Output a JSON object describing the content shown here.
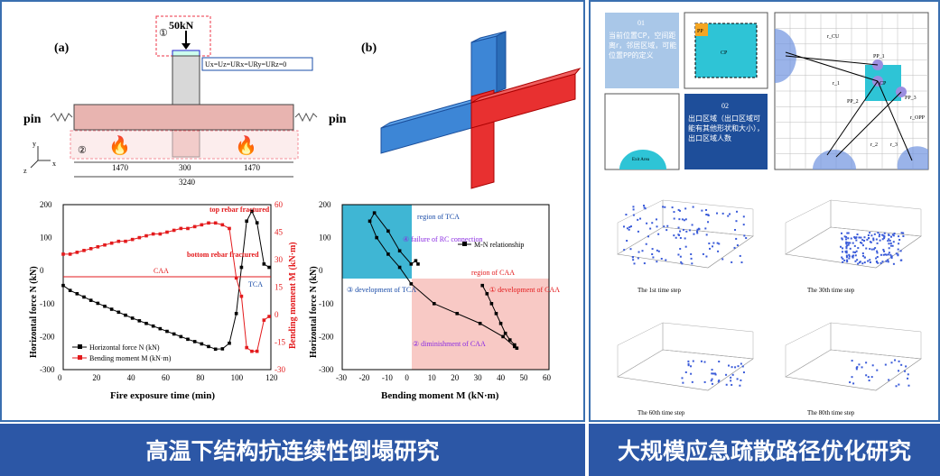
{
  "banners": {
    "left": "高温下结构抗连续性倒塌研究",
    "right": "大规模应急疏散路径优化研究"
  },
  "fig_a": {
    "label": "(a)",
    "load": "50kN",
    "marker1": "①",
    "marker2": "②",
    "boundary": "Ux=Uz=URx=URy=URz=0",
    "pin_left": "pin",
    "pin_right": "pin",
    "dims": [
      "1470",
      "300",
      "1470",
      "3240"
    ],
    "axes": {
      "y": "y",
      "z": "z",
      "x": "x"
    },
    "fire_icon": "fire-icon"
  },
  "fig_b": {
    "label": "(b)"
  },
  "chart_data": [
    {
      "type": "line",
      "xlabel": "Fire exposure time (min)",
      "ylabel": "Horizontal force N (kN)",
      "ylabel_right": "Bending moment M (kN·m)",
      "xlim": [
        0,
        120
      ],
      "xticks": [
        0,
        20,
        40,
        60,
        80,
        100,
        120
      ],
      "ylim": [
        -300,
        200
      ],
      "yticks": [
        -300,
        -200,
        -100,
        0,
        100,
        200
      ],
      "ylim_right": [
        -30,
        60
      ],
      "yticks_right": [
        -30,
        -15,
        0,
        15,
        30,
        45,
        60
      ],
      "legend_position": "bottom-left",
      "annotations": [
        "top rebar fractured",
        "bottom rebar fractured",
        "CAA",
        "TCA"
      ],
      "series": [
        {
          "name": "Horizontal force N (kN)",
          "color": "#000000",
          "axis": "left",
          "x": [
            0,
            4,
            8,
            12,
            16,
            20,
            24,
            28,
            32,
            36,
            40,
            44,
            48,
            52,
            56,
            60,
            64,
            68,
            72,
            76,
            80,
            84,
            88,
            92,
            96,
            100,
            103,
            106,
            109,
            112,
            116,
            119
          ],
          "values": [
            -45,
            -60,
            -70,
            -80,
            -90,
            -99,
            -108,
            -117,
            -126,
            -135,
            -144,
            -152,
            -160,
            -168,
            -176,
            -184,
            -192,
            -200,
            -208,
            -215,
            -222,
            -230,
            -238,
            -237,
            -220,
            -130,
            10,
            150,
            180,
            145,
            20,
            10
          ]
        },
        {
          "name": "Bending moment M (kN·m)",
          "color": "#e31a1c",
          "axis": "right",
          "x": [
            0,
            4,
            8,
            12,
            16,
            20,
            24,
            28,
            32,
            36,
            40,
            44,
            48,
            52,
            56,
            60,
            64,
            68,
            72,
            76,
            80,
            84,
            88,
            92,
            96,
            100,
            103,
            106,
            109,
            112,
            116,
            119
          ],
          "values": [
            33,
            33,
            34,
            35,
            36,
            37,
            38,
            39,
            40,
            40,
            41,
            42,
            43,
            44,
            44,
            45,
            46,
            47,
            47,
            48,
            49,
            50,
            50,
            49,
            47,
            20,
            10,
            -18,
            -20,
            -20,
            -3,
            -1
          ]
        }
      ]
    },
    {
      "type": "line",
      "xlabel": "Bending moment M (kN·m)",
      "ylabel": "Horizontal force N (kN)",
      "xlim": [
        -30,
        60
      ],
      "xticks": [
        -30,
        -20,
        -10,
        0,
        10,
        20,
        30,
        40,
        50,
        60
      ],
      "ylim": [
        -300,
        200
      ],
      "yticks": [
        -300,
        -200,
        -100,
        0,
        100,
        200
      ],
      "legend_position": "top-right",
      "annotations": [
        "region of TCA",
        "region of CAA",
        "① development of CAA",
        "② diminishment of CAA",
        "③ development of TCA",
        "④ failure of RC connection"
      ],
      "series": [
        {
          "name": "M-N relationship",
          "color": "#000000",
          "x": [
            31,
            33,
            35,
            37,
            39,
            41,
            43,
            45,
            46,
            45,
            40,
            30,
            20,
            10,
            0,
            -5,
            -10,
            -15,
            -18,
            -16,
            -10,
            -5,
            0,
            2,
            3
          ],
          "values": [
            -45,
            -70,
            -100,
            -130,
            -160,
            -190,
            -210,
            -225,
            -235,
            -230,
            -200,
            -160,
            -130,
            -100,
            -40,
            10,
            50,
            100,
            150,
            175,
            120,
            60,
            20,
            30,
            20
          ]
        }
      ]
    }
  ],
  "right": {
    "box01": {
      "num": "01",
      "text": "当前位置CP，空间距离r，邻居区域，可能位置PP的定义"
    },
    "box02": {
      "num": "02",
      "text": "出口区域（出口区域可能有其他形状和大小），出口区域人数"
    },
    "labels": {
      "pp": "PP",
      "cp": "CP",
      "exit_area": "Exit Area"
    },
    "diagram_labels": [
      "r_CU",
      "PP_1",
      "r_1",
      "CP",
      "PP_2",
      "PP_3",
      "r_2",
      "r_3",
      "r_OPP",
      "r_3"
    ],
    "scatter_captions": [
      "The 1st time step",
      "The 30th time step",
      "The 60th time step",
      "The 80th time step"
    ]
  }
}
